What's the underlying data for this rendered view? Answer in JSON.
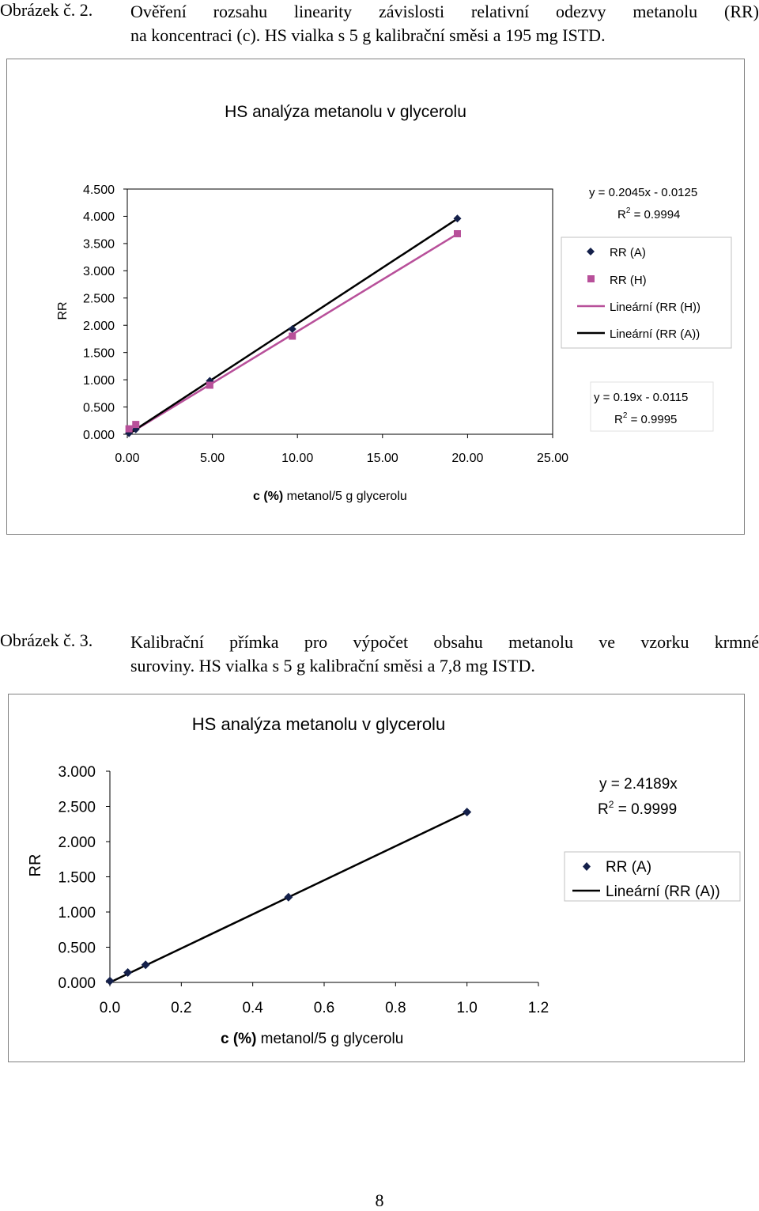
{
  "captions": [
    {
      "number": "Obrázek č. 2.",
      "line1": "Ověření rozsahu linearity závislosti relativní odezvy metanolu (RR)",
      "line2": "na koncentraci (c). HS vialka s 5 g kalibrační směsi a 195 mg ISTD."
    },
    {
      "number": "Obrázek č. 3.",
      "line1": "Kalibrační přímka pro výpočet obsahu metanolu ve vzorku krmné",
      "line2": "suroviny. HS vialka s 5 g kalibrační směsi a 7,8 mg ISTD."
    }
  ],
  "page_number": "8",
  "colors": {
    "series_a": "#14204a",
    "series_h": "#b8509a",
    "line_a": "#000000",
    "line_h": "#b8509a"
  },
  "chart_data": [
    {
      "type": "scatter",
      "title": "HS analýza metanolu v glycerolu",
      "xlabel_bold": "c (%)",
      "xlabel_rest": " metanol/5 g glycerolu",
      "ylabel": "RR",
      "xlim": [
        0,
        25
      ],
      "ylim": [
        0,
        4.5
      ],
      "xticks": [
        "0.00",
        "5.00",
        "10.00",
        "15.00",
        "20.00",
        "25.00"
      ],
      "yticks": [
        "0.000",
        "0.500",
        "1.000",
        "1.500",
        "2.000",
        "2.500",
        "3.000",
        "3.500",
        "4.000",
        "4.500"
      ],
      "grid": false,
      "legend_position": "right",
      "series": [
        {
          "name": "RR (A)",
          "marker": "diamond",
          "x": [
            0.1,
            0.5,
            4.85,
            9.7,
            19.4
          ],
          "y": [
            0.02,
            0.09,
            0.98,
            1.93,
            3.96
          ]
        },
        {
          "name": "RR (H)",
          "marker": "square",
          "x": [
            0.1,
            0.5,
            4.85,
            9.7,
            19.4
          ],
          "y": [
            0.1,
            0.18,
            0.9,
            1.8,
            3.68
          ]
        }
      ],
      "trendlines": [
        {
          "name": "Lineární (RR (H))",
          "series": "RR (H)",
          "slope": 0.19,
          "intercept": -0.0115,
          "x_range": [
            0.1,
            19.4
          ]
        },
        {
          "name": "Lineární (RR (A))",
          "series": "RR (A)",
          "slope": 0.2045,
          "intercept": -0.0125,
          "x_range": [
            0.1,
            19.4
          ]
        }
      ],
      "equations": [
        {
          "eq": "y = 0.2045x - 0.0125",
          "r2_prefix": "R",
          "r2_sup": "2",
          "r2_value": " = 0.9994"
        },
        {
          "eq": "y = 0.19x - 0.0115",
          "r2_prefix": "R",
          "r2_sup": "2",
          "r2_value": " = 0.9995"
        }
      ]
    },
    {
      "type": "scatter",
      "title": "HS analýza metanolu v glycerolu",
      "xlabel_bold": "c (%)",
      "xlabel_rest": " metanol/5 g glycerolu",
      "ylabel": "RR",
      "xlim": [
        0,
        1.2
      ],
      "ylim": [
        0,
        3.0
      ],
      "xticks": [
        "0.0",
        "0.2",
        "0.4",
        "0.6",
        "0.8",
        "1.0",
        "1.2"
      ],
      "yticks": [
        "0.000",
        "0.500",
        "1.000",
        "1.500",
        "2.000",
        "2.500",
        "3.000"
      ],
      "grid": false,
      "legend_position": "right",
      "series": [
        {
          "name": "RR (A)",
          "marker": "diamond",
          "x": [
            0.0,
            0.05,
            0.1,
            0.5,
            1.0
          ],
          "y": [
            0.02,
            0.14,
            0.25,
            1.21,
            2.42
          ]
        }
      ],
      "trendlines": [
        {
          "name": "Lineární (RR (A))",
          "series": "RR (A)",
          "slope": 2.4189,
          "intercept": 0,
          "x_range": [
            0.0,
            1.0
          ]
        }
      ],
      "equations": [
        {
          "eq": "y = 2.4189x",
          "r2_prefix": "R",
          "r2_sup": "2",
          "r2_value": " = 0.9999"
        }
      ]
    }
  ]
}
